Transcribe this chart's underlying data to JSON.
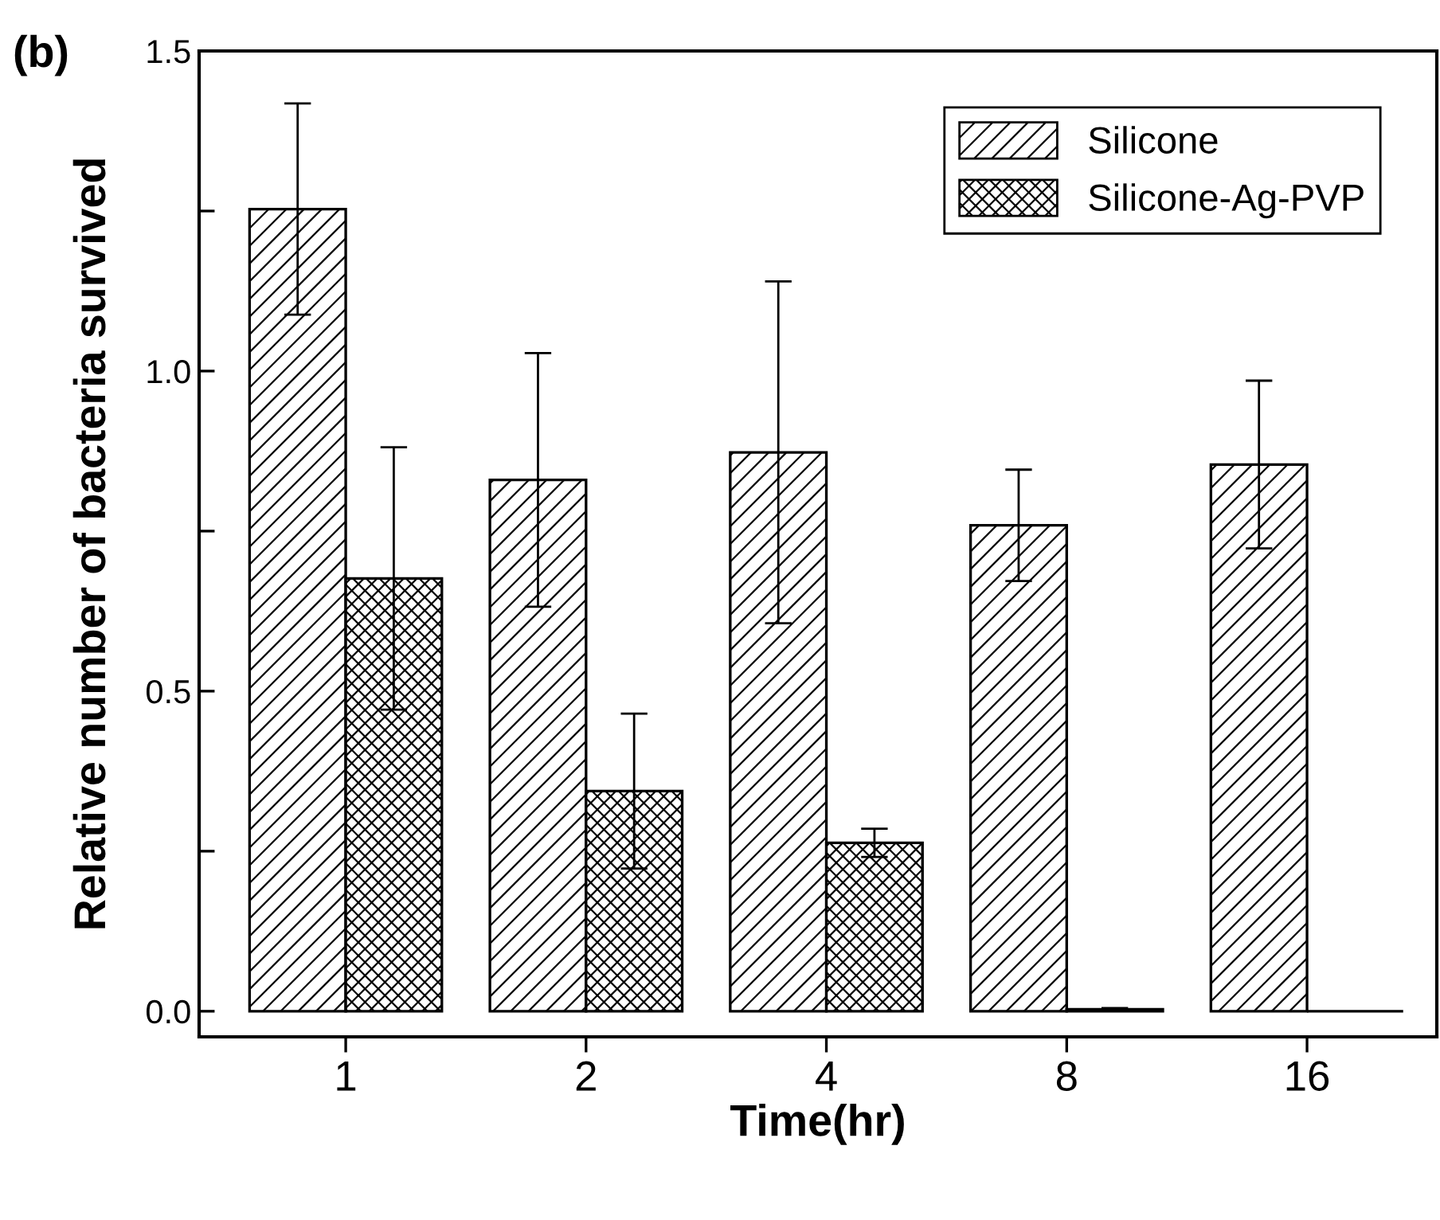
{
  "chart_data": {
    "type": "bar",
    "categories": [
      "1",
      "2",
      "4",
      "8",
      "16"
    ],
    "series": [
      {
        "name": "Silicone",
        "color": "#000000",
        "values": [
          1.253,
          0.83,
          0.873,
          0.759,
          0.854
        ],
        "errors": [
          0.165,
          0.198,
          0.267,
          0.087,
          0.131
        ]
      },
      {
        "name": "Silicone-Ag-PVP",
        "color": "#000000",
        "values": [
          0.676,
          0.344,
          0.263,
          0.003,
          0.0
        ],
        "errors": [
          0.205,
          0.121,
          0.022,
          0.002,
          null
        ]
      }
    ],
    "xlabel": "Time(hr)",
    "ylabel": "Relative number of bacteria survived",
    "annotations": [
      "(b)"
    ],
    "ylim": [
      -0.04,
      1.5
    ],
    "yticks": [
      {
        "value": 0,
        "label": "0.0"
      },
      {
        "value": 0.25,
        "label": null
      },
      {
        "value": 0.5,
        "label": "0.5"
      },
      {
        "value": 0.75,
        "label": null
      },
      {
        "value": 1,
        "label": "1.0"
      },
      {
        "value": 1.25,
        "label": null
      },
      {
        "value": 1.5,
        "label": "1.5"
      }
    ],
    "legend": "top right",
    "grid": false
  }
}
